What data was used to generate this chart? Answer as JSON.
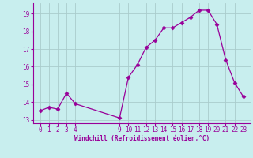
{
  "x": [
    0,
    1,
    2,
    3,
    4,
    9,
    10,
    11,
    12,
    13,
    14,
    15,
    16,
    17,
    18,
    19,
    20,
    21,
    22,
    23
  ],
  "y": [
    13.5,
    13.7,
    13.6,
    14.5,
    13.9,
    13.1,
    15.4,
    16.1,
    17.1,
    17.5,
    18.2,
    18.2,
    18.5,
    18.8,
    19.2,
    19.2,
    18.4,
    16.4,
    15.1,
    14.3
  ],
  "line_color": "#990099",
  "marker": "D",
  "marker_size": 2.5,
  "bg_color": "#c8eeee",
  "grid_color": "#aacccc",
  "xlabel": "Windchill (Refroidissement éolien,°C)",
  "ylim": [
    12.8,
    19.6
  ],
  "yticks": [
    13,
    14,
    15,
    16,
    17,
    18,
    19
  ],
  "xticks": [
    0,
    1,
    2,
    3,
    4,
    9,
    10,
    11,
    12,
    13,
    14,
    15,
    16,
    17,
    18,
    19,
    20,
    21,
    22,
    23
  ],
  "font_color": "#990099",
  "tick_fontsize": 5.5,
  "xlabel_fontsize": 5.5
}
